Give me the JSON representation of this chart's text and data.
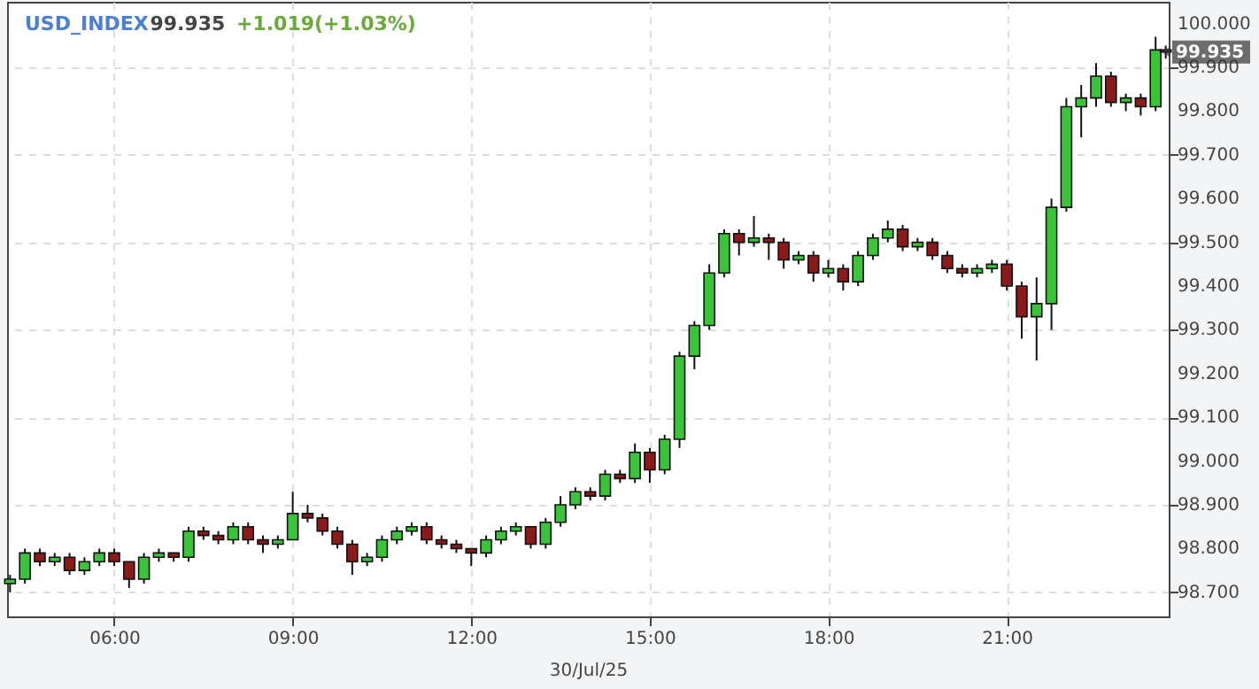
{
  "chart_data": {
    "type": "candlestick",
    "title": "USD_INDEX",
    "annotations": [
      "99.935",
      "+1.019(+1.03%)",
      {
        "text": "99.935",
        "x": 23.67,
        "y": 99.935
      }
    ],
    "xlabel": "30/Jul/25",
    "x": [
      4.25,
      4.5,
      4.75,
      5.0,
      5.25,
      5.5,
      5.75,
      6.0,
      6.25,
      6.5,
      6.75,
      7.0,
      7.25,
      7.5,
      7.75,
      8.0,
      8.25,
      8.5,
      8.75,
      9.0,
      9.25,
      9.5,
      9.75,
      10.0,
      10.25,
      10.5,
      10.75,
      11.0,
      11.25,
      11.5,
      11.75,
      12.0,
      12.25,
      12.5,
      12.75,
      13.0,
      13.25,
      13.5,
      13.75,
      14.0,
      14.25,
      14.5,
      14.75,
      15.0,
      15.25,
      15.5,
      15.75,
      16.0,
      16.25,
      16.5,
      16.75,
      17.0,
      17.25,
      17.5,
      17.75,
      18.0,
      18.25,
      18.5,
      18.75,
      19.0,
      19.25,
      19.5,
      19.75,
      20.0,
      20.25,
      20.5,
      20.75,
      21.0,
      21.25,
      21.5,
      21.75,
      22.0,
      22.25,
      22.5,
      22.75,
      23.0,
      23.25,
      23.5,
      23.67
    ],
    "ohlc": [
      [
        98.72,
        98.74,
        98.7,
        98.73
      ],
      [
        98.73,
        98.8,
        98.72,
        98.79
      ],
      [
        98.79,
        98.8,
        98.76,
        98.77
      ],
      [
        98.77,
        98.79,
        98.76,
        98.78
      ],
      [
        98.78,
        98.79,
        98.74,
        98.75
      ],
      [
        98.75,
        98.78,
        98.74,
        98.77
      ],
      [
        98.77,
        98.8,
        98.76,
        98.79
      ],
      [
        98.79,
        98.8,
        98.76,
        98.77
      ],
      [
        98.77,
        98.77,
        98.71,
        98.73
      ],
      [
        98.73,
        98.79,
        98.72,
        98.78
      ],
      [
        98.78,
        98.8,
        98.77,
        98.79
      ],
      [
        98.79,
        98.79,
        98.77,
        98.78
      ],
      [
        98.78,
        98.85,
        98.77,
        98.84
      ],
      [
        98.84,
        98.85,
        98.82,
        98.83
      ],
      [
        98.83,
        98.84,
        98.81,
        98.82
      ],
      [
        98.82,
        98.86,
        98.81,
        98.85
      ],
      [
        98.85,
        98.86,
        98.81,
        98.82
      ],
      [
        98.82,
        98.83,
        98.79,
        98.81
      ],
      [
        98.81,
        98.83,
        98.8,
        98.82
      ],
      [
        98.82,
        98.93,
        98.82,
        98.88
      ],
      [
        98.88,
        98.9,
        98.86,
        98.87
      ],
      [
        98.87,
        98.88,
        98.83,
        98.84
      ],
      [
        98.84,
        98.85,
        98.8,
        98.81
      ],
      [
        98.81,
        98.82,
        98.74,
        98.77
      ],
      [
        98.77,
        98.79,
        98.76,
        98.78
      ],
      [
        98.78,
        98.83,
        98.77,
        98.82
      ],
      [
        98.82,
        98.85,
        98.81,
        98.84
      ],
      [
        98.84,
        98.86,
        98.83,
        98.85
      ],
      [
        98.85,
        98.86,
        98.81,
        98.82
      ],
      [
        98.82,
        98.83,
        98.8,
        98.81
      ],
      [
        98.81,
        98.82,
        98.79,
        98.8
      ],
      [
        98.8,
        98.8,
        98.76,
        98.79
      ],
      [
        98.79,
        98.83,
        98.78,
        98.82
      ],
      [
        98.82,
        98.85,
        98.81,
        98.84
      ],
      [
        98.84,
        98.86,
        98.83,
        98.85
      ],
      [
        98.85,
        98.85,
        98.8,
        98.81
      ],
      [
        98.81,
        98.87,
        98.8,
        98.86
      ],
      [
        98.86,
        98.92,
        98.85,
        98.9
      ],
      [
        98.9,
        98.94,
        98.89,
        98.93
      ],
      [
        98.93,
        98.94,
        98.91,
        98.92
      ],
      [
        98.92,
        98.98,
        98.91,
        98.97
      ],
      [
        98.97,
        98.98,
        98.95,
        98.96
      ],
      [
        98.96,
        99.04,
        98.95,
        99.02
      ],
      [
        99.02,
        99.03,
        98.95,
        98.98
      ],
      [
        98.98,
        99.06,
        98.97,
        99.05
      ],
      [
        99.05,
        99.25,
        99.03,
        99.24
      ],
      [
        99.24,
        99.32,
        99.21,
        99.31
      ],
      [
        99.31,
        99.45,
        99.3,
        99.43
      ],
      [
        99.43,
        99.53,
        99.42,
        99.52
      ],
      [
        99.52,
        99.53,
        99.47,
        99.5
      ],
      [
        99.5,
        99.56,
        99.49,
        99.51
      ],
      [
        99.51,
        99.52,
        99.46,
        99.5
      ],
      [
        99.5,
        99.51,
        99.44,
        99.46
      ],
      [
        99.46,
        99.48,
        99.45,
        99.47
      ],
      [
        99.47,
        99.48,
        99.41,
        99.43
      ],
      [
        99.43,
        99.46,
        99.42,
        99.44
      ],
      [
        99.44,
        99.45,
        99.39,
        99.41
      ],
      [
        99.41,
        99.48,
        99.4,
        99.47
      ],
      [
        99.47,
        99.52,
        99.46,
        99.51
      ],
      [
        99.51,
        99.55,
        99.5,
        99.53
      ],
      [
        99.53,
        99.54,
        99.48,
        99.49
      ],
      [
        99.49,
        99.51,
        99.48,
        99.5
      ],
      [
        99.5,
        99.51,
        99.46,
        99.47
      ],
      [
        99.47,
        99.48,
        99.43,
        99.44
      ],
      [
        99.44,
        99.45,
        99.42,
        99.43
      ],
      [
        99.43,
        99.45,
        99.42,
        99.44
      ],
      [
        99.44,
        99.46,
        99.43,
        99.45
      ],
      [
        99.45,
        99.46,
        99.39,
        99.4
      ],
      [
        99.4,
        99.41,
        99.28,
        99.33
      ],
      [
        99.33,
        99.42,
        99.23,
        99.36
      ],
      [
        99.36,
        99.6,
        99.3,
        99.58
      ],
      [
        99.58,
        99.83,
        99.57,
        99.81
      ],
      [
        99.81,
        99.86,
        99.74,
        99.83
      ],
      [
        99.83,
        99.91,
        99.81,
        99.88
      ],
      [
        99.88,
        99.89,
        99.81,
        99.82
      ],
      [
        99.82,
        99.84,
        99.8,
        99.83
      ],
      [
        99.83,
        99.84,
        99.79,
        99.81
      ],
      [
        99.81,
        99.97,
        99.8,
        99.94
      ],
      [
        99.94,
        99.95,
        99.92,
        99.935
      ]
    ],
    "colors": [
      "#3ac43a",
      "#3ac43a",
      "#8b1a1a",
      "#3ac43a",
      "#8b1a1a",
      "#3ac43a",
      "#3ac43a",
      "#8b1a1a",
      "#8b1a1a",
      "#3ac43a",
      "#3ac43a",
      "#8b1a1a",
      "#3ac43a",
      "#8b1a1a",
      "#8b1a1a",
      "#3ac43a",
      "#8b1a1a",
      "#8b1a1a",
      "#3ac43a",
      "#3ac43a",
      "#8b1a1a",
      "#8b1a1a",
      "#8b1a1a",
      "#8b1a1a",
      "#3ac43a",
      "#3ac43a",
      "#3ac43a",
      "#3ac43a",
      "#8b1a1a",
      "#8b1a1a",
      "#8b1a1a",
      "#8b1a1a",
      "#3ac43a",
      "#3ac43a",
      "#3ac43a",
      "#8b1a1a",
      "#3ac43a",
      "#3ac43a",
      "#3ac43a",
      "#8b1a1a",
      "#3ac43a",
      "#8b1a1a",
      "#3ac43a",
      "#8b1a1a",
      "#3ac43a",
      "#3ac43a",
      "#3ac43a",
      "#3ac43a",
      "#3ac43a",
      "#8b1a1a",
      "#3ac43a",
      "#8b1a1a",
      "#8b1a1a",
      "#3ac43a",
      "#8b1a1a",
      "#3ac43a",
      "#8b1a1a",
      "#3ac43a",
      "#3ac43a",
      "#3ac43a",
      "#8b1a1a",
      "#3ac43a",
      "#8b1a1a",
      "#8b1a1a",
      "#8b1a1a",
      "#3ac43a",
      "#3ac43a",
      "#8b1a1a",
      "#8b1a1a",
      "#3ac43a",
      "#3ac43a",
      "#3ac43a",
      "#3ac43a",
      "#3ac43a",
      "#8b1a1a",
      "#3ac43a",
      "#8b1a1a",
      "#3ac43a",
      "#8b1a1a"
    ],
    "xlim": [
      4.2,
      23.72
    ],
    "xticks": [
      {
        "value": 6,
        "label": "06:00"
      },
      {
        "value": 9,
        "label": "09:00"
      },
      {
        "value": 12,
        "label": "12:00"
      },
      {
        "value": 15,
        "label": "15:00"
      },
      {
        "value": 18,
        "label": "18:00"
      },
      {
        "value": 21,
        "label": "21:00"
      }
    ],
    "ylim": [
      98.645,
      100.05
    ],
    "yticks": [
      {
        "value": 98.7,
        "label": "98.700"
      },
      {
        "value": 98.8,
        "label": "98.800"
      },
      {
        "value": 98.9,
        "label": "98.900"
      },
      {
        "value": 99.0,
        "label": "99.000"
      },
      {
        "value": 99.1,
        "label": "99.100"
      },
      {
        "value": 99.2,
        "label": "99.200"
      },
      {
        "value": 99.3,
        "label": "99.300"
      },
      {
        "value": 99.4,
        "label": "99.400"
      },
      {
        "value": 99.5,
        "label": "99.500"
      },
      {
        "value": 99.6,
        "label": "99.600"
      },
      {
        "value": 99.7,
        "label": "99.700"
      },
      {
        "value": 99.8,
        "label": "99.800"
      },
      {
        "value": 99.9,
        "label": "99.900"
      },
      {
        "value": 100.0,
        "label": "100.000"
      }
    ],
    "grid": true
  }
}
